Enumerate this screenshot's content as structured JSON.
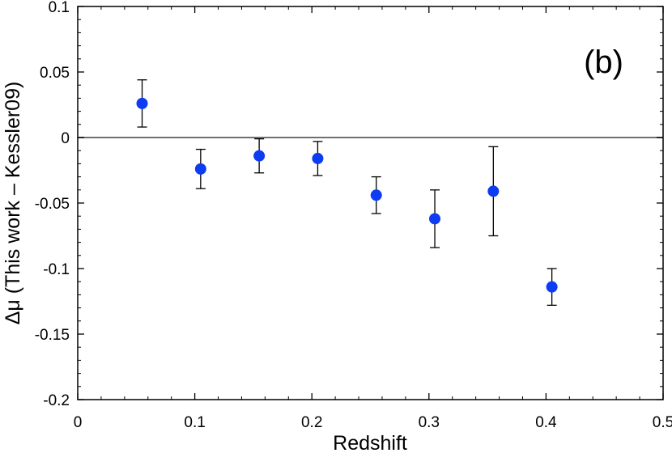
{
  "chart_data": {
    "type": "scatter",
    "title": "",
    "panel_label": "(b)",
    "xlabel": "Redshift",
    "ylabel": "Δμ (This work – Kessler09)",
    "xlim": [
      0,
      0.5
    ],
    "ylim": [
      -0.2,
      0.1
    ],
    "x_ticks": [
      0,
      0.1,
      0.2,
      0.3,
      0.4,
      0.5
    ],
    "x_tick_labels": [
      "0",
      "0.1",
      "0.2",
      "0.3",
      "0.4",
      "0.5"
    ],
    "y_ticks": [
      -0.2,
      -0.15,
      -0.1,
      -0.05,
      0,
      0.05,
      0.1
    ],
    "y_tick_labels": [
      "-0.2",
      "-0.15",
      "-0.1",
      "-0.05",
      "0",
      "0.05",
      "0.1"
    ],
    "reference_line_y": 0,
    "grid": false,
    "series": [
      {
        "name": "Δμ",
        "x": [
          0.055,
          0.105,
          0.155,
          0.205,
          0.255,
          0.305,
          0.355,
          0.405
        ],
        "y": [
          0.026,
          -0.024,
          -0.014,
          -0.016,
          -0.044,
          -0.062,
          -0.041,
          -0.114
        ],
        "err_low": [
          0.018,
          0.015,
          0.013,
          0.013,
          0.014,
          0.022,
          0.034,
          0.014
        ],
        "err_high": [
          0.018,
          0.015,
          0.013,
          0.013,
          0.014,
          0.022,
          0.034,
          0.014
        ]
      }
    ],
    "colors": {
      "marker": "#0d3cf2",
      "errorbar": "#000000",
      "reference_line": "#707070",
      "axis": "#000000"
    }
  }
}
